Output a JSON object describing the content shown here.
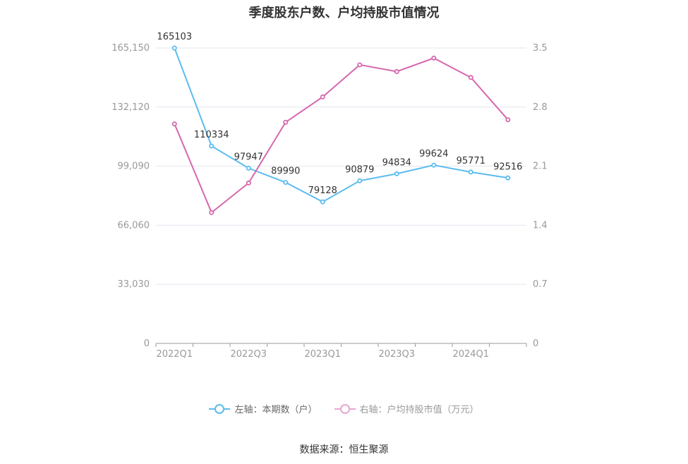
{
  "title": "季度股东户数、户均持股市值情况",
  "source": "数据来源：恒生聚源",
  "colors": {
    "left_series": "#5bbcf0",
    "right_series": "#d667ad",
    "grid": "#e3e6ef",
    "axis_text": "#999999"
  },
  "chart_data": {
    "type": "line",
    "title": "季度股东户数、户均持股市值情况",
    "x": [
      "2022Q1",
      "2022Q2",
      "2022Q3",
      "2022Q4",
      "2023Q1",
      "2023Q2",
      "2023Q3",
      "2023Q4",
      "2024Q1",
      "2024Q2"
    ],
    "x_tick_labels": [
      "2022Q1",
      "2022Q3",
      "2023Q1",
      "2023Q3",
      "2024Q1"
    ],
    "y_left": {
      "ticks": [
        0,
        33030,
        66060,
        99090,
        132120,
        165150
      ],
      "tick_labels": [
        "0",
        "33,030",
        "66,060",
        "99,090",
        "132,120",
        "165,150"
      ],
      "ylim": [
        0,
        165150
      ]
    },
    "y_right": {
      "ticks": [
        0,
        0.7,
        1.4,
        2.1,
        2.8,
        3.5
      ],
      "tick_labels": [
        "0",
        "0.7",
        "1.4",
        "2.1",
        "2.8",
        "3.5"
      ],
      "ylim": [
        0,
        3.5
      ]
    },
    "series": [
      {
        "name": "左轴：本期数（户）",
        "axis": "left",
        "values": [
          165103,
          110334,
          97947,
          89990,
          79128,
          90879,
          94834,
          99624,
          95771,
          92516
        ],
        "labels": [
          "165103",
          "110334",
          "97947",
          "89990",
          "79128",
          "90879",
          "94834",
          "99624",
          "95771",
          "92516"
        ]
      },
      {
        "name": "右轴：户均持股市值（万元）",
        "axis": "right",
        "values": [
          2.6,
          1.55,
          1.9,
          2.62,
          2.92,
          3.3,
          3.22,
          3.38,
          3.15,
          2.65
        ]
      }
    ],
    "grid": true,
    "legend_position": "bottom-center"
  }
}
